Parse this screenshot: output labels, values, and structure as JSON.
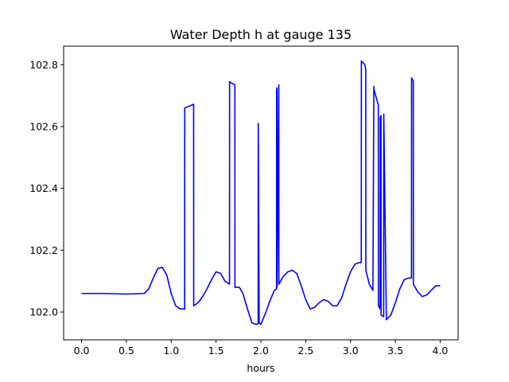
{
  "chart_data": {
    "type": "line",
    "title": "Water Depth h at gauge 135",
    "xlabel": "hours",
    "ylabel": "",
    "xlim": [
      -0.2,
      4.2
    ],
    "ylim": [
      101.91,
      102.86
    ],
    "xticks": [
      0.0,
      0.5,
      1.0,
      1.5,
      2.0,
      2.5,
      3.0,
      3.5,
      4.0
    ],
    "xtick_labels": [
      "0.0",
      "0.5",
      "1.0",
      "1.5",
      "2.0",
      "2.5",
      "3.0",
      "3.5",
      "4.0"
    ],
    "yticks": [
      102.0,
      102.2,
      102.4,
      102.6,
      102.8
    ],
    "ytick_labels": [
      "102.0",
      "102.2",
      "102.4",
      "102.6",
      "102.8"
    ],
    "grid": false,
    "series": [
      {
        "color": "#0000ff",
        "x": [
          0.0,
          0.25,
          0.5,
          0.7,
          0.75,
          0.8,
          0.85,
          0.9,
          0.95,
          1.0,
          1.05,
          1.1,
          1.15,
          1.151,
          1.25,
          1.251,
          1.3,
          1.35,
          1.4,
          1.45,
          1.5,
          1.55,
          1.6,
          1.65,
          1.651,
          1.69,
          1.71,
          1.711,
          1.76,
          1.8,
          1.85,
          1.9,
          1.95,
          1.97,
          1.971,
          1.981,
          2.0,
          2.05,
          2.1,
          2.15,
          2.175,
          2.176,
          2.18,
          2.181,
          2.2,
          2.201,
          2.25,
          2.3,
          2.35,
          2.4,
          2.45,
          2.5,
          2.55,
          2.6,
          2.65,
          2.7,
          2.75,
          2.8,
          2.85,
          2.9,
          2.95,
          3.0,
          3.05,
          3.1,
          3.12,
          3.121,
          3.16,
          3.17,
          3.171,
          3.21,
          3.25,
          3.26,
          3.261,
          3.3,
          3.31,
          3.311,
          3.33,
          3.331,
          3.34,
          3.341,
          3.37,
          3.371,
          3.4,
          3.45,
          3.5,
          3.55,
          3.6,
          3.65,
          3.68,
          3.681,
          3.7,
          3.701,
          3.75,
          3.8,
          3.85,
          3.9,
          3.95,
          4.0
        ],
        "values": [
          102.06,
          102.06,
          102.058,
          102.06,
          102.075,
          102.11,
          102.14,
          102.145,
          102.12,
          102.06,
          102.02,
          102.01,
          102.01,
          102.66,
          102.672,
          102.02,
          102.03,
          102.05,
          102.075,
          102.105,
          102.13,
          102.125,
          102.1,
          102.09,
          102.745,
          102.738,
          102.735,
          102.08,
          102.08,
          102.06,
          102.01,
          101.965,
          101.96,
          101.962,
          102.61,
          101.965,
          101.96,
          101.995,
          102.035,
          102.07,
          102.075,
          102.72,
          102.725,
          102.08,
          102.735,
          102.09,
          102.115,
          102.13,
          102.135,
          102.125,
          102.085,
          102.04,
          102.01,
          102.015,
          102.03,
          102.04,
          102.035,
          102.02,
          102.02,
          102.045,
          102.09,
          102.13,
          102.155,
          102.16,
          102.16,
          102.812,
          102.8,
          102.785,
          102.135,
          102.09,
          102.07,
          102.73,
          102.72,
          102.68,
          102.67,
          102.02,
          102.01,
          102.63,
          102.635,
          101.99,
          101.985,
          102.64,
          101.975,
          101.99,
          102.03,
          102.075,
          102.105,
          102.11,
          102.11,
          102.757,
          102.748,
          102.09,
          102.065,
          102.05,
          102.055,
          102.07,
          102.085,
          102.085
        ]
      }
    ]
  }
}
